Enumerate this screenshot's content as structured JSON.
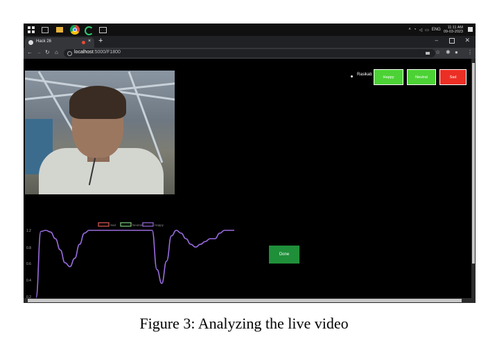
{
  "taskbar": {
    "icons": [
      "windows-start-icon",
      "task-view-icon",
      "file-explorer-icon",
      "chrome-icon",
      "refresh-app-icon",
      "window-icon"
    ],
    "language": "ENG",
    "time": "11:11 AM",
    "date": "09-03-2023"
  },
  "browser": {
    "tab_title": "Hack 26",
    "tab_close": "×",
    "new_tab": "+",
    "url_host": "localhost",
    "url_rest": ":5000/F1800"
  },
  "page": {
    "user_name": "Rasikab",
    "buttons": {
      "happy": "Happy",
      "neutral": "Neutral",
      "sad": "Sad"
    },
    "done_button": "Done",
    "colors": {
      "happy": "#4cd235",
      "sad": "#ec2f25",
      "done": "#1f8f3a"
    }
  },
  "chart_data": {
    "type": "line",
    "legend": [
      {
        "name": "Sad",
        "color": "#e05a5a"
      },
      {
        "name": "Neutral",
        "color": "#7ed07e"
      },
      {
        "name": "Happy",
        "color": "#9a6ce0"
      }
    ],
    "y_ticks": [
      "1.2",
      "0.8",
      "0.6",
      "0.4",
      "0.2"
    ],
    "ylim": [
      0,
      1.2
    ],
    "series": [
      {
        "name": "Happy",
        "color": "#9a6ce0",
        "values": [
          0.0,
          1.18,
          1.2,
          1.17,
          1.05,
          0.85,
          0.62,
          0.55,
          0.7,
          0.95,
          1.15,
          1.2,
          1.2,
          1.2,
          1.2,
          1.2,
          1.2,
          1.2,
          1.2,
          1.2,
          1.2,
          1.2,
          1.2,
          1.2,
          1.2,
          0.5,
          0.25,
          0.65,
          1.1,
          1.2,
          1.15,
          1.05,
          0.95,
          0.9,
          0.95,
          1.0,
          1.05,
          1.05,
          1.15,
          1.2,
          1.2,
          1.2
        ]
      }
    ],
    "grid": false
  },
  "caption": "Figure 3: Analyzing the live video"
}
